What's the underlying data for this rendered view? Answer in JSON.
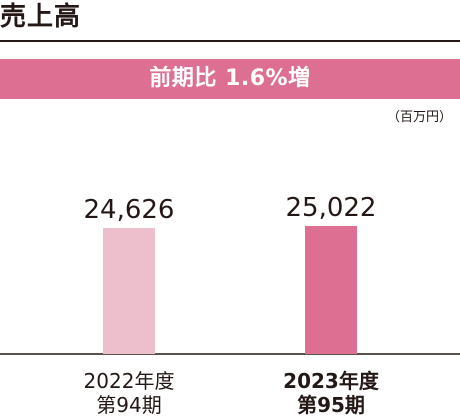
{
  "title": "売上高",
  "banner": "前期比 1.6%増",
  "unit": "（百万円）",
  "colors": {
    "accent": "#dc6f92",
    "bar_prev": "#edbfcc",
    "bar_curr": "#dc6f92",
    "text": "#231815"
  },
  "chart_data": {
    "type": "bar",
    "categories": [
      [
        "2022年度",
        "第94期"
      ],
      [
        "2023年度",
        "第95期"
      ]
    ],
    "values": [
      24626,
      25022
    ],
    "value_labels": [
      "24,626",
      "25,022"
    ],
    "ylabel": "（百万円）"
  }
}
